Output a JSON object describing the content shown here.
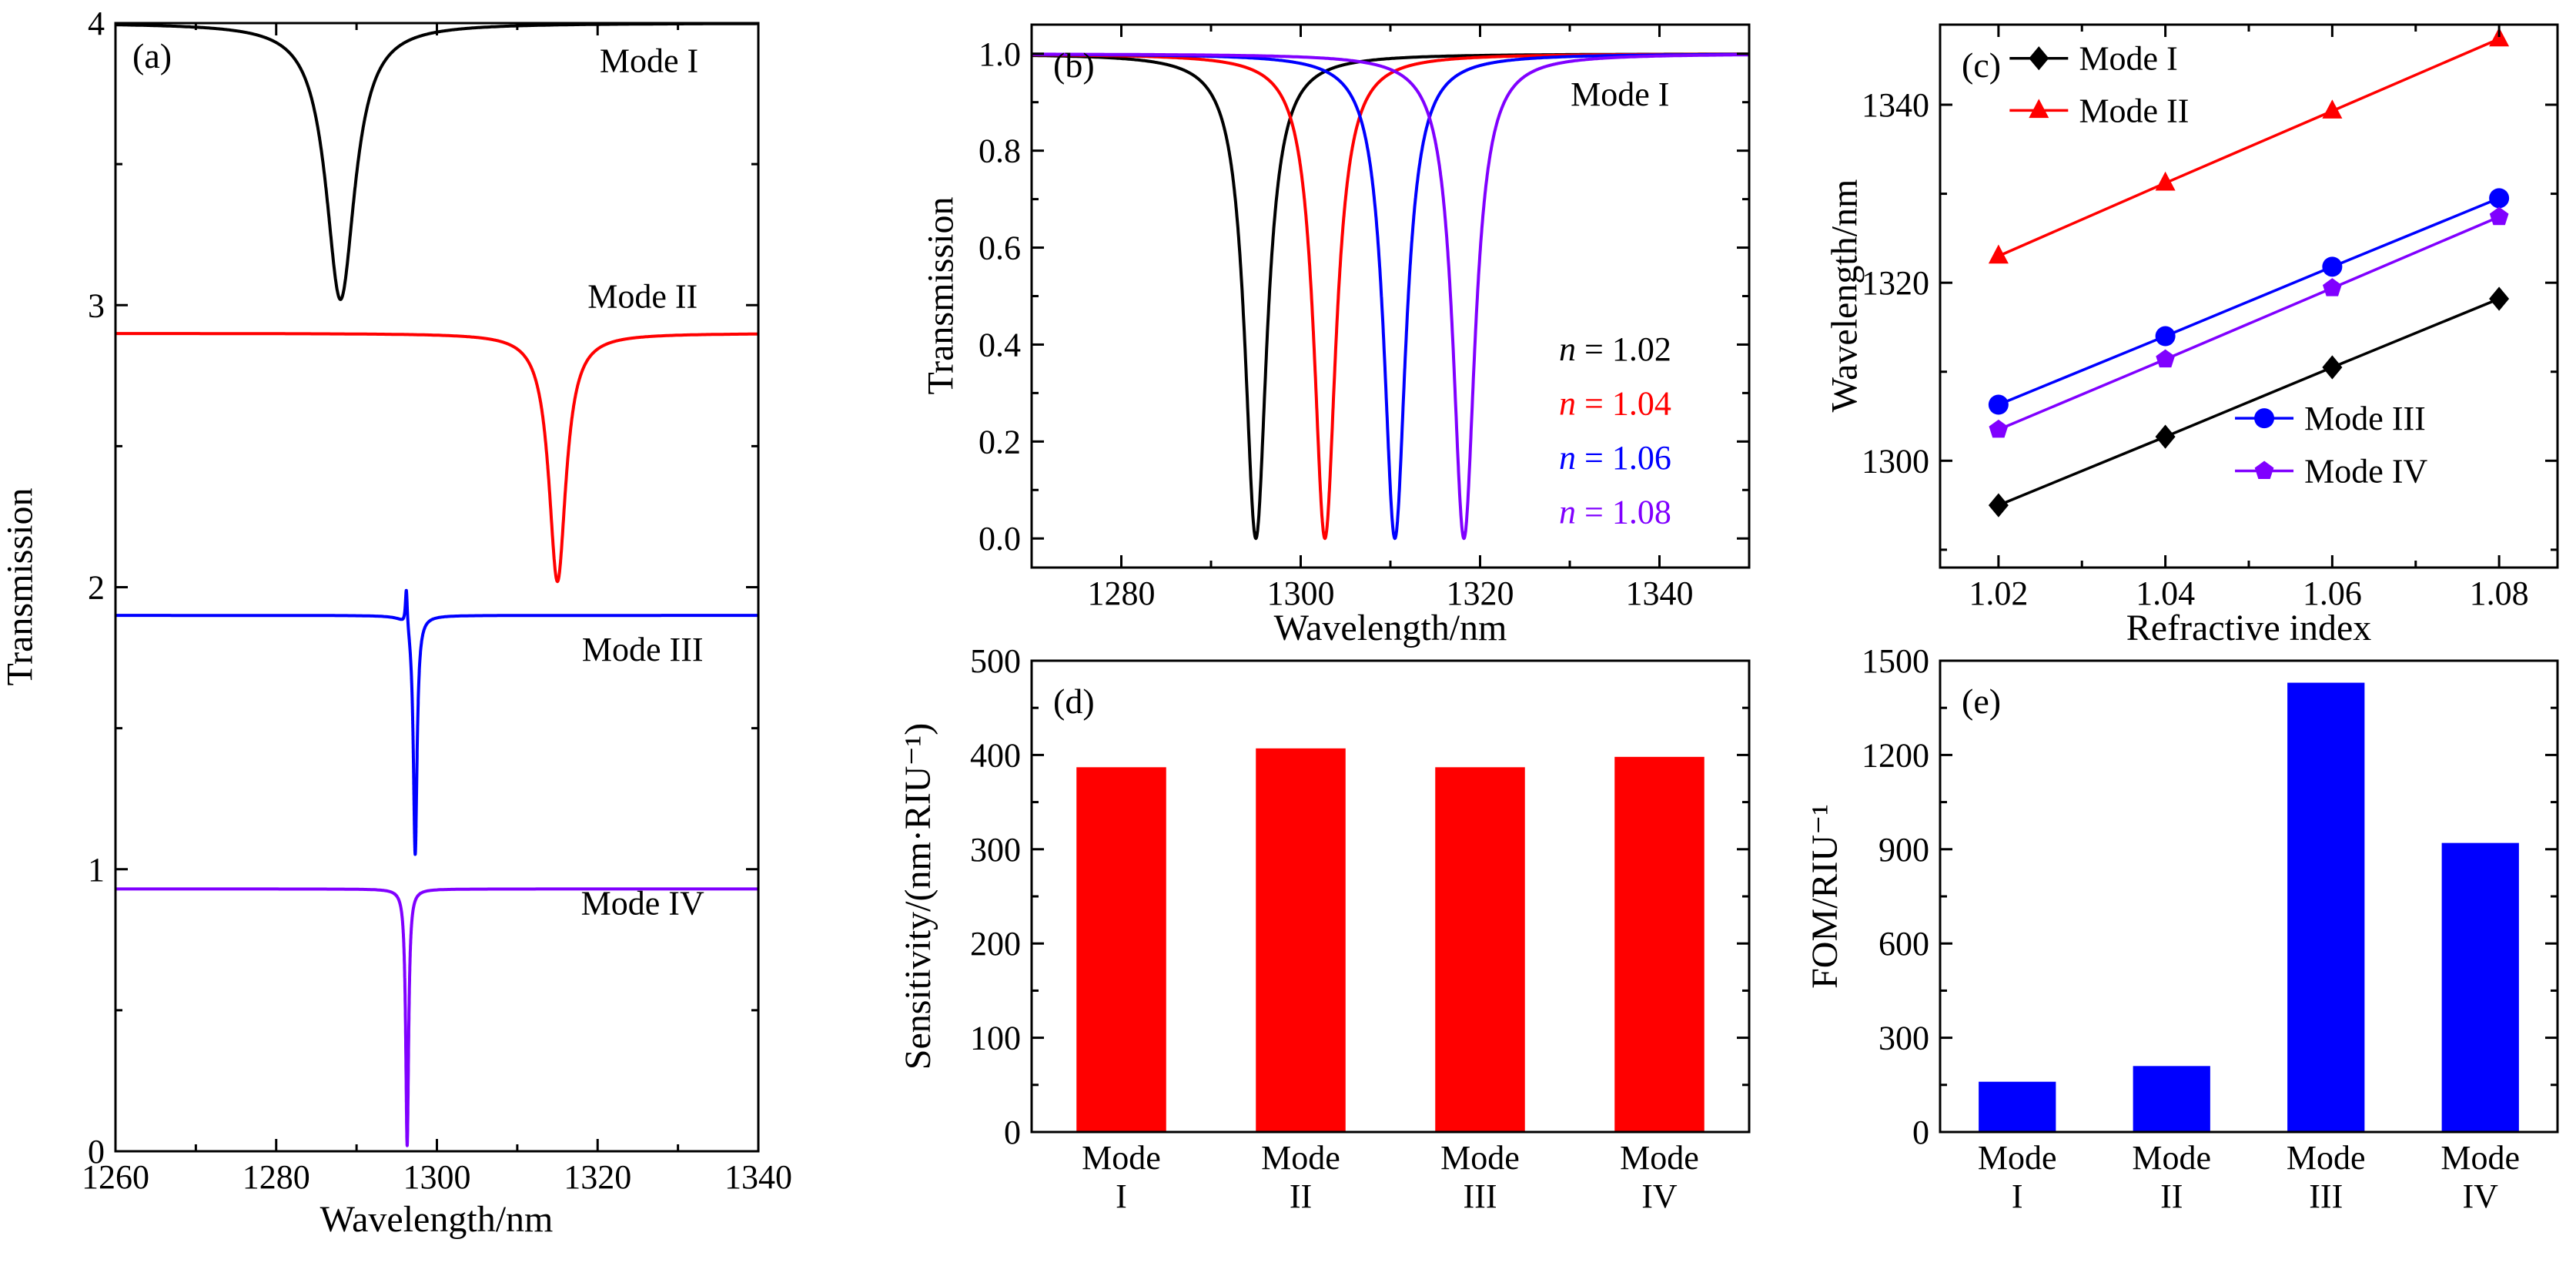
{
  "chart_data": [
    {
      "id": "a",
      "panel": "(a)",
      "type": "spectra",
      "xlabel": "Wavelength/nm",
      "ylabel": "Transmission",
      "xlim": [
        1260,
        1340
      ],
      "ylim": [
        0,
        4
      ],
      "xticks": [
        1260,
        1280,
        1300,
        1320,
        1340
      ],
      "yticks": [
        0,
        1,
        2,
        3,
        4
      ],
      "grid": false,
      "series": [
        {
          "name": "Mode I",
          "color": "#000000",
          "baseline": 4.0,
          "features": [
            {
              "center": 1288.0,
              "gamma": 2.2,
              "amp": -0.98
            }
          ]
        },
        {
          "name": "Mode II",
          "color": "#ff0000",
          "baseline": 2.9,
          "features": [
            {
              "center": 1315.0,
              "gamma": 1.3,
              "amp": -0.88
            }
          ]
        },
        {
          "name": "Mode III",
          "color": "#0000ff",
          "baseline": 1.9,
          "features": [
            {
              "center": 1297.3,
              "gamma": 0.28,
              "amp": -0.85
            },
            {
              "center": 1296.2,
              "gamma": 0.15,
              "amp": 0.14
            }
          ]
        },
        {
          "name": "Mode IV",
          "color": "#8000ff",
          "baseline": 0.93,
          "features": [
            {
              "center": 1296.3,
              "gamma": 0.22,
              "amp": -0.91
            }
          ]
        }
      ],
      "annotations": [
        {
          "text": "Mode I",
          "fx": 0.83,
          "fy": 0.033,
          "color": "#000000",
          "anchor": "middle"
        },
        {
          "text": "Mode II",
          "fx": 0.82,
          "fy": 0.242,
          "color": "#000000",
          "anchor": "middle"
        },
        {
          "text": "Mode III",
          "fx": 0.82,
          "fy": 0.555,
          "color": "#000000",
          "anchor": "middle"
        },
        {
          "text": "Mode IV",
          "fx": 0.82,
          "fy": 0.78,
          "color": "#000000",
          "anchor": "middle"
        }
      ]
    },
    {
      "id": "b",
      "panel": "(b)",
      "type": "spectra",
      "xlabel": "Wavelength/nm",
      "ylabel": "Transmission",
      "xlim": [
        1270,
        1350
      ],
      "ylim": [
        -0.06,
        1.06
      ],
      "xticks": [
        1280,
        1300,
        1320,
        1340
      ],
      "yticks": [
        0,
        0.2,
        0.4,
        0.6,
        0.8,
        1.0
      ],
      "ytick_labels": [
        "0.0",
        "0.2",
        "0.4",
        "0.6",
        "0.8",
        "1.0"
      ],
      "grid": false,
      "series": [
        {
          "name": "n = 1.02",
          "color": "#000000",
          "baseline": 1.0,
          "features": [
            {
              "center": 1295.0,
              "gamma": 1.5,
              "amp": -1.0
            }
          ]
        },
        {
          "name": "n = 1.04",
          "color": "#ff0000",
          "baseline": 1.0,
          "features": [
            {
              "center": 1302.7,
              "gamma": 1.5,
              "amp": -1.0
            }
          ]
        },
        {
          "name": "n = 1.06",
          "color": "#0000ff",
          "baseline": 1.0,
          "features": [
            {
              "center": 1310.5,
              "gamma": 1.5,
              "amp": -1.0
            }
          ]
        },
        {
          "name": "n = 1.08",
          "color": "#8000ff",
          "baseline": 1.0,
          "features": [
            {
              "center": 1318.2,
              "gamma": 1.5,
              "amp": -1.0
            }
          ]
        }
      ],
      "annotations": [
        {
          "text": "Mode I",
          "fx": 0.82,
          "fy": 0.128,
          "color": "#000000",
          "anchor": "middle"
        },
        {
          "text": "n = 1.02",
          "fx": 0.735,
          "fy": 0.597,
          "color": "#000000",
          "anchor": "start",
          "italic_first": true
        },
        {
          "text": "n = 1.04",
          "fx": 0.735,
          "fy": 0.697,
          "color": "#ff0000",
          "anchor": "start",
          "italic_first": true
        },
        {
          "text": "n = 1.06",
          "fx": 0.735,
          "fy": 0.797,
          "color": "#0000ff",
          "anchor": "start",
          "italic_first": true
        },
        {
          "text": "n = 1.08",
          "fx": 0.735,
          "fy": 0.897,
          "color": "#8000ff",
          "anchor": "start",
          "italic_first": true
        }
      ]
    },
    {
      "id": "c",
      "panel": "(c)",
      "type": "lines",
      "xlabel": "Refractive index",
      "ylabel": "Wavelength/nm",
      "xlim": [
        1.013,
        1.087
      ],
      "ylim": [
        1288,
        1349
      ],
      "xticks": [
        1.02,
        1.04,
        1.06,
        1.08
      ],
      "yticks": [
        1300,
        1320,
        1340
      ],
      "grid": false,
      "x": [
        1.02,
        1.04,
        1.06,
        1.08
      ],
      "series": [
        {
          "name": "Mode I",
          "color": "#000000",
          "marker": "diamond",
          "values": [
            1295.0,
            1302.7,
            1310.5,
            1318.2
          ]
        },
        {
          "name": "Mode II",
          "color": "#ff0000",
          "marker": "triangle",
          "values": [
            1323.0,
            1331.2,
            1339.3,
            1347.4
          ]
        },
        {
          "name": "Mode III",
          "color": "#0000ff",
          "marker": "circle",
          "values": [
            1306.3,
            1314.0,
            1321.8,
            1329.5
          ]
        },
        {
          "name": "Mode IV",
          "color": "#8000ff",
          "marker": "pentagon",
          "values": [
            1303.5,
            1311.4,
            1319.4,
            1327.4
          ]
        }
      ],
      "legend_groups": [
        {
          "marker_fx": 0.16,
          "text_fx": 0.225,
          "rows": [
            {
              "series": "Mode I",
              "fy": 0.062
            },
            {
              "series": "Mode II",
              "fy": 0.158
            }
          ]
        },
        {
          "marker_fx": 0.525,
          "text_fx": 0.59,
          "rows": [
            {
              "series": "Mode III",
              "fy": 0.725
            },
            {
              "series": "Mode IV",
              "fy": 0.822
            }
          ]
        }
      ]
    },
    {
      "id": "d",
      "panel": "(d)",
      "type": "bar",
      "ylabel": "Sensitivity/(nm·RIU⁻¹)",
      "categories": [
        [
          "Mode",
          "I"
        ],
        [
          "Mode",
          "II"
        ],
        [
          "Mode",
          "III"
        ],
        [
          "Mode",
          "IV"
        ]
      ],
      "values": [
        387,
        407,
        387,
        398
      ],
      "bar_color": "#ff0000",
      "ylim": [
        0,
        500
      ],
      "yticks": [
        0,
        100,
        200,
        300,
        400,
        500
      ],
      "grid": false
    },
    {
      "id": "e",
      "panel": "(e)",
      "type": "bar",
      "ylabel": "FOM/RIU⁻¹",
      "categories": [
        [
          "Mode",
          "I"
        ],
        [
          "Mode",
          "II"
        ],
        [
          "Mode",
          "III"
        ],
        [
          "Mode",
          "IV"
        ]
      ],
      "values": [
        160,
        210,
        1430,
        920
      ],
      "bar_color": "#0000ff",
      "ylim": [
        0,
        1500
      ],
      "yticks": [
        0,
        300,
        600,
        900,
        1200,
        1500
      ],
      "grid": false
    }
  ]
}
